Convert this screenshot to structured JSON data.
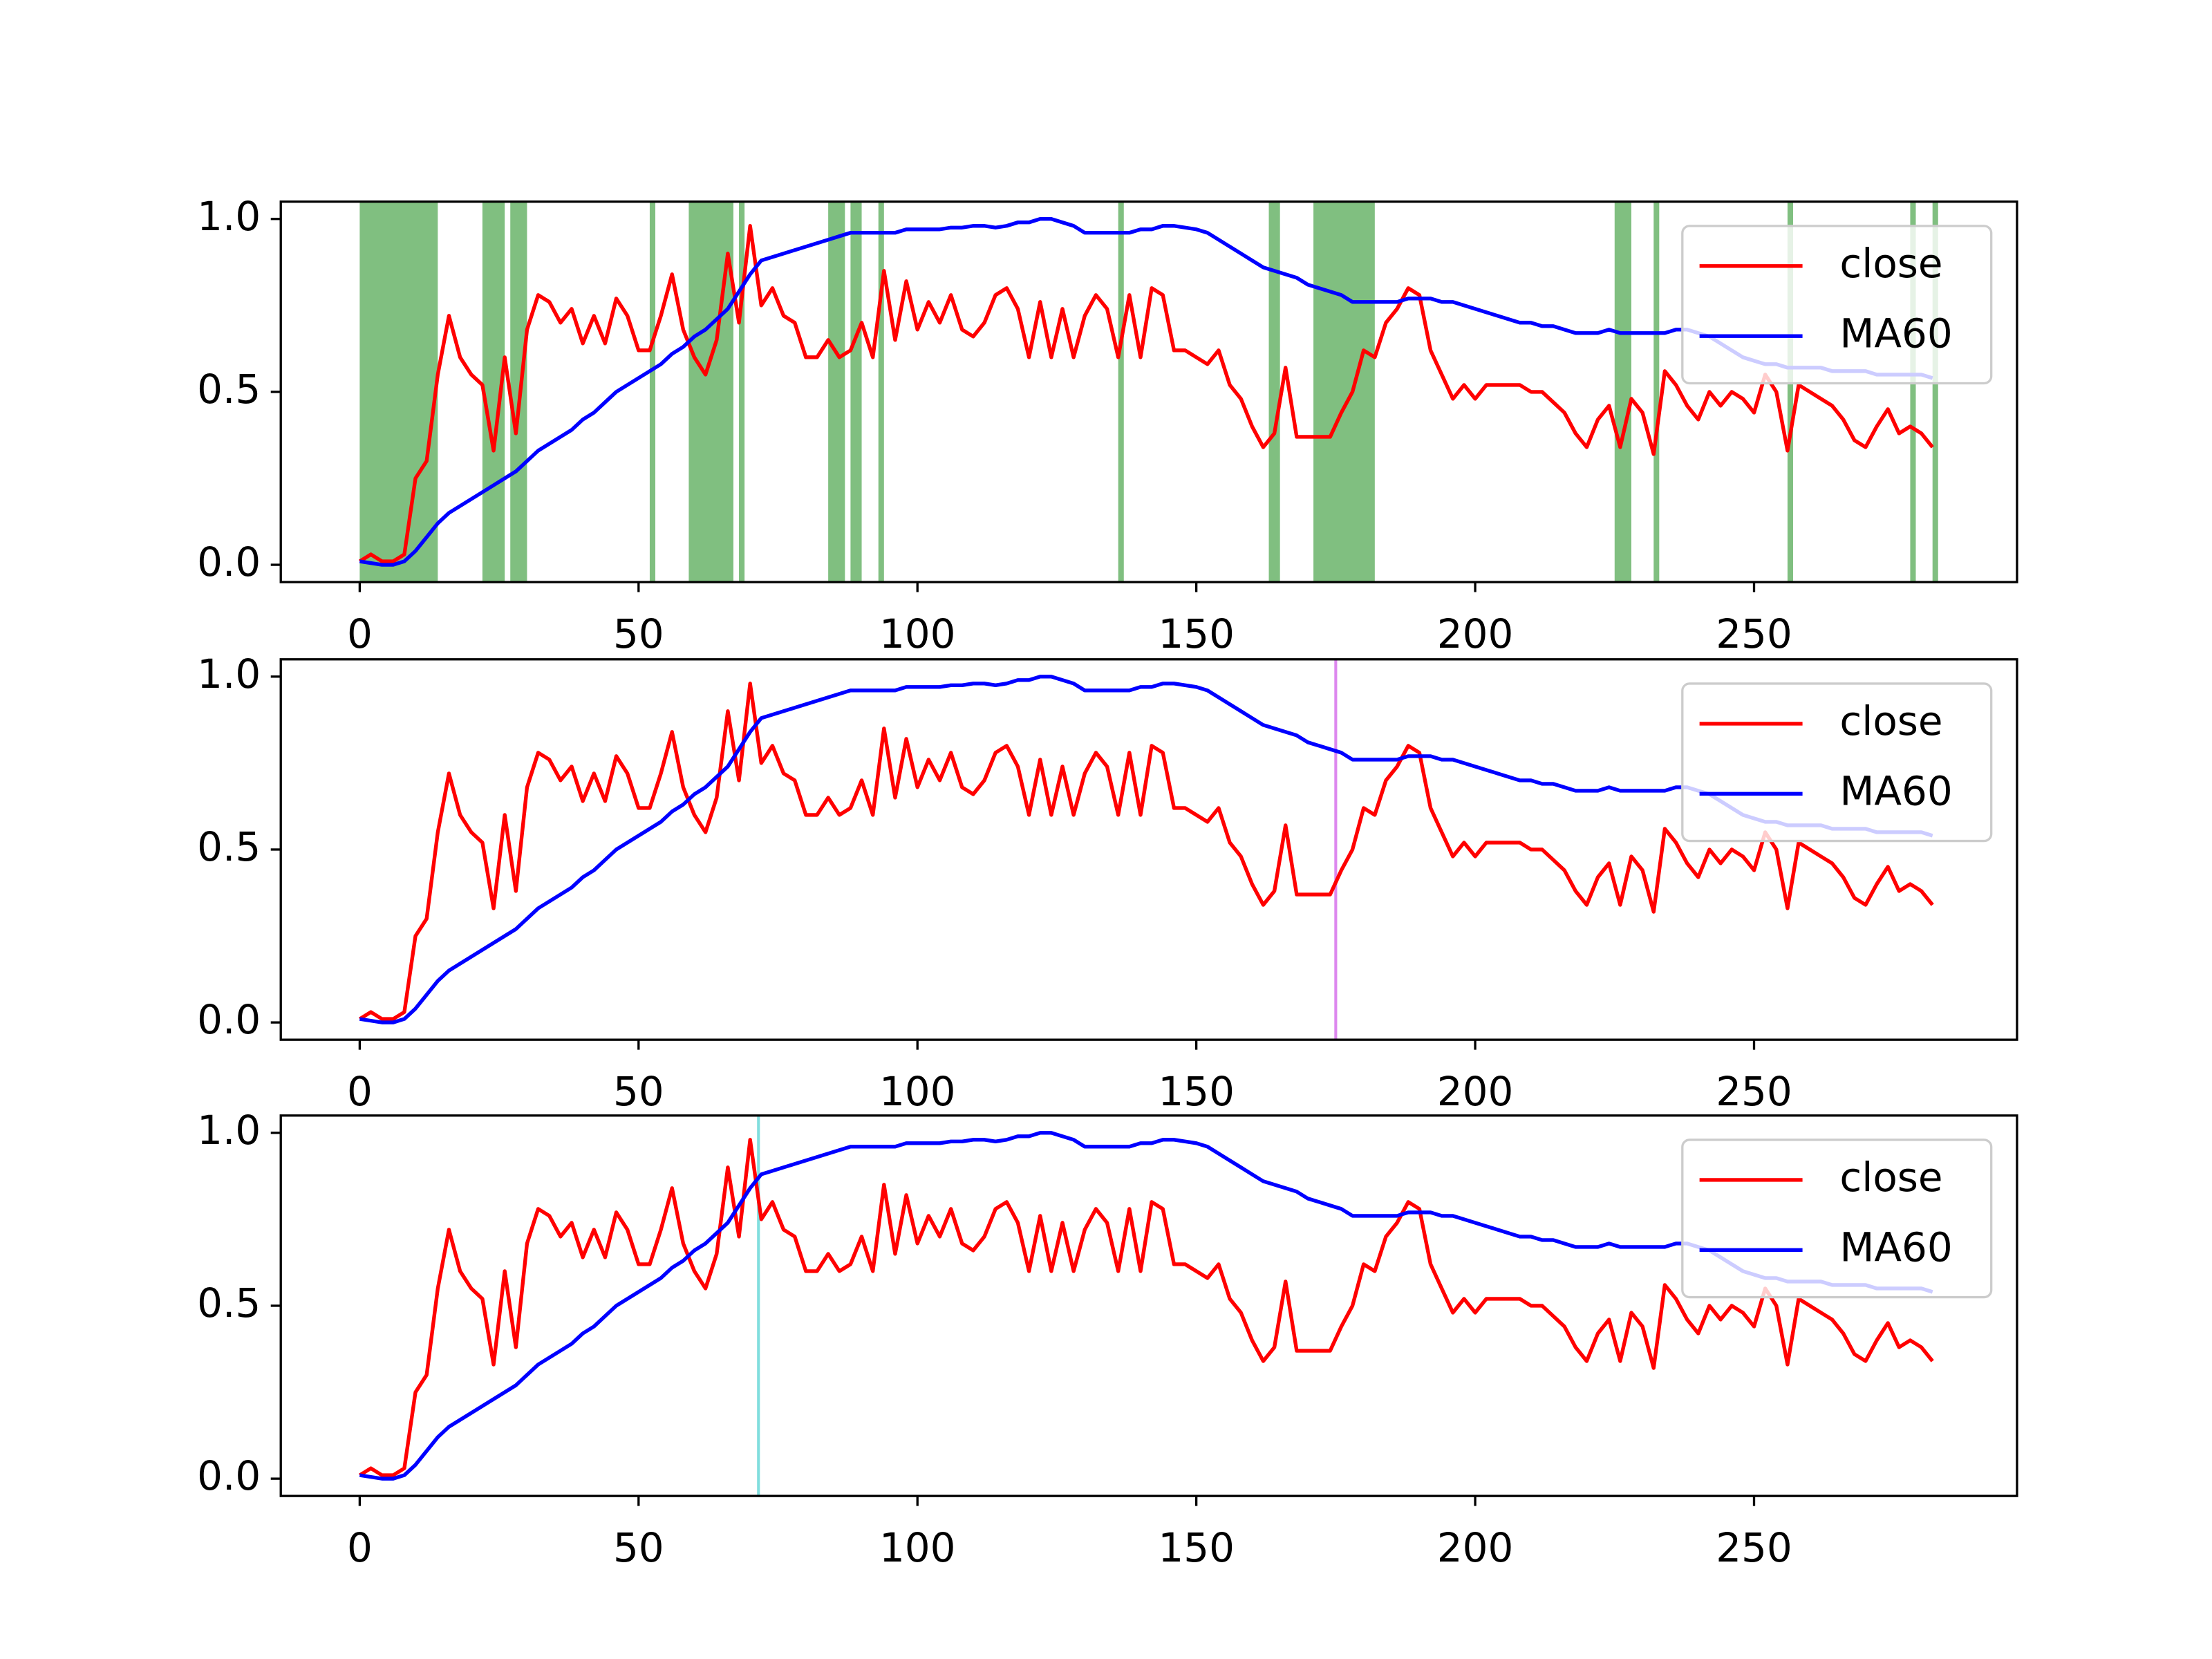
{
  "chart_data": [
    {
      "type": "line",
      "x": [
        0,
        2,
        4,
        6,
        8,
        10,
        12,
        14,
        16,
        18,
        20,
        22,
        24,
        26,
        28,
        30,
        32,
        34,
        36,
        38,
        40,
        42,
        44,
        46,
        48,
        50,
        52,
        54,
        56,
        58,
        60,
        62,
        64,
        66,
        68,
        70,
        72,
        74,
        76,
        78,
        80,
        82,
        84,
        86,
        88,
        90,
        92,
        94,
        96,
        98,
        100,
        102,
        104,
        106,
        108,
        110,
        112,
        114,
        116,
        118,
        120,
        122,
        124,
        126,
        128,
        130,
        132,
        134,
        136,
        138,
        140,
        142,
        144,
        146,
        148,
        150,
        152,
        154,
        156,
        158,
        160,
        162,
        164,
        166,
        168,
        170,
        172,
        174,
        176,
        178,
        180,
        182,
        184,
        186,
        188,
        190,
        192,
        194,
        196,
        198,
        200,
        202,
        204,
        206,
        208,
        210,
        212,
        214,
        216,
        218,
        220,
        222,
        224,
        226,
        228,
        230,
        232,
        234,
        236,
        238,
        240,
        242,
        244,
        246,
        248,
        250,
        252,
        254,
        256,
        258,
        260,
        262,
        264,
        266,
        268,
        270,
        272,
        274,
        276,
        278,
        280,
        282
      ],
      "series": [
        {
          "name": "close",
          "color": "#ff0000",
          "values": [
            0.01,
            0.03,
            0.01,
            0.01,
            0.03,
            0.25,
            0.3,
            0.55,
            0.72,
            0.6,
            0.55,
            0.52,
            0.33,
            0.6,
            0.38,
            0.68,
            0.78,
            0.76,
            0.7,
            0.74,
            0.64,
            0.72,
            0.64,
            0.77,
            0.72,
            0.62,
            0.62,
            0.72,
            0.84,
            0.68,
            0.6,
            0.55,
            0.65,
            0.9,
            0.7,
            0.98,
            0.75,
            0.8,
            0.72,
            0.7,
            0.6,
            0.6,
            0.65,
            0.6,
            0.62,
            0.7,
            0.6,
            0.85,
            0.65,
            0.82,
            0.68,
            0.76,
            0.7,
            0.78,
            0.68,
            0.66,
            0.7,
            0.78,
            0.8,
            0.74,
            0.6,
            0.76,
            0.6,
            0.74,
            0.6,
            0.72,
            0.78,
            0.74,
            0.6,
            0.78,
            0.6,
            0.8,
            0.78,
            0.62,
            0.62,
            0.6,
            0.58,
            0.62,
            0.52,
            0.48,
            0.4,
            0.34,
            0.38,
            0.57,
            0.37,
            0.37,
            0.37,
            0.37,
            0.44,
            0.5,
            0.62,
            0.6,
            0.7,
            0.74,
            0.8,
            0.78,
            0.62,
            0.55,
            0.48,
            0.52,
            0.48,
            0.52,
            0.52,
            0.52,
            0.52,
            0.5,
            0.5,
            0.47,
            0.44,
            0.38,
            0.34,
            0.42,
            0.46,
            0.34,
            0.48,
            0.44,
            0.32,
            0.56,
            0.52,
            0.46,
            0.42,
            0.5,
            0.46,
            0.5,
            0.48,
            0.44,
            0.55,
            0.5,
            0.33,
            0.52,
            0.5,
            0.48,
            0.46,
            0.42,
            0.36,
            0.34,
            0.4,
            0.45,
            0.38,
            0.4,
            0.38,
            0.34
          ]
        },
        {
          "name": "MA60",
          "color": "#0000ff",
          "values": [
            0.01,
            0.005,
            0,
            0,
            0.01,
            0.04,
            0.08,
            0.12,
            0.15,
            0.17,
            0.19,
            0.21,
            0.23,
            0.25,
            0.27,
            0.3,
            0.33,
            0.35,
            0.37,
            0.39,
            0.42,
            0.44,
            0.47,
            0.5,
            0.52,
            0.54,
            0.56,
            0.58,
            0.61,
            0.63,
            0.66,
            0.68,
            0.71,
            0.74,
            0.79,
            0.84,
            0.88,
            0.89,
            0.9,
            0.91,
            0.92,
            0.93,
            0.94,
            0.95,
            0.96,
            0.96,
            0.96,
            0.96,
            0.96,
            0.97,
            0.97,
            0.97,
            0.97,
            0.975,
            0.975,
            0.98,
            0.98,
            0.975,
            0.98,
            0.99,
            0.99,
            1.0,
            1.0,
            0.99,
            0.98,
            0.96,
            0.96,
            0.96,
            0.96,
            0.96,
            0.97,
            0.97,
            0.98,
            0.98,
            0.975,
            0.97,
            0.96,
            0.94,
            0.92,
            0.9,
            0.88,
            0.86,
            0.85,
            0.84,
            0.83,
            0.81,
            0.8,
            0.79,
            0.78,
            0.76,
            0.76,
            0.76,
            0.76,
            0.76,
            0.77,
            0.77,
            0.77,
            0.76,
            0.76,
            0.75,
            0.74,
            0.73,
            0.72,
            0.71,
            0.7,
            0.7,
            0.69,
            0.69,
            0.68,
            0.67,
            0.67,
            0.67,
            0.68,
            0.67,
            0.67,
            0.67,
            0.67,
            0.67,
            0.68,
            0.68,
            0.67,
            0.66,
            0.64,
            0.62,
            0.6,
            0.59,
            0.58,
            0.58,
            0.57,
            0.57,
            0.57,
            0.57,
            0.56,
            0.56,
            0.56,
            0.56,
            0.55,
            0.55,
            0.55,
            0.55,
            0.55,
            0.54
          ]
        }
      ],
      "xlim": [
        -14.15,
        297.15
      ],
      "ylim": [
        -0.05,
        1.05
      ],
      "xticks": [
        0,
        50,
        100,
        150,
        200,
        250
      ],
      "yticks": [
        {
          "value": 0,
          "label": "0.0"
        },
        {
          "value": 0.5,
          "label": "0.5"
        },
        {
          "value": 1,
          "label": "1.0"
        }
      ],
      "legend": "upper right",
      "spans": {
        "color": "#80bf80",
        "ranges": [
          [
            0,
            14
          ],
          [
            22,
            26
          ],
          [
            27,
            30
          ],
          [
            52,
            53
          ],
          [
            59,
            67
          ],
          [
            68,
            69
          ],
          [
            84,
            87
          ],
          [
            88,
            90
          ],
          [
            93,
            94
          ],
          [
            136,
            137
          ],
          [
            163,
            165
          ],
          [
            171,
            182
          ],
          [
            225,
            228
          ],
          [
            232,
            233
          ],
          [
            256,
            257
          ],
          [
            278,
            279
          ],
          [
            282,
            283
          ]
        ]
      }
    },
    {
      "type": "line",
      "xlim": [
        -14.15,
        297.15
      ],
      "ylim": [
        -0.05,
        1.05
      ],
      "xticks": [
        0,
        50,
        100,
        150,
        200,
        250
      ],
      "yticks": [
        {
          "value": 0,
          "label": "0.0"
        },
        {
          "value": 0.5,
          "label": "0.5"
        },
        {
          "value": 1,
          "label": "1.0"
        }
      ],
      "legend": "upper right",
      "vline": {
        "x": 175,
        "color": "#dd88ee"
      }
    },
    {
      "type": "line",
      "xlim": [
        -14.15,
        297.15
      ],
      "ylim": [
        -0.05,
        1.05
      ],
      "xticks": [
        0,
        50,
        100,
        150,
        200,
        250
      ],
      "yticks": [
        {
          "value": 0,
          "label": "0.0"
        },
        {
          "value": 0.5,
          "label": "0.5"
        },
        {
          "value": 1,
          "label": "1.0"
        }
      ],
      "legend": "upper right",
      "vline": {
        "x": 71.5,
        "color": "#80dede"
      }
    }
  ]
}
